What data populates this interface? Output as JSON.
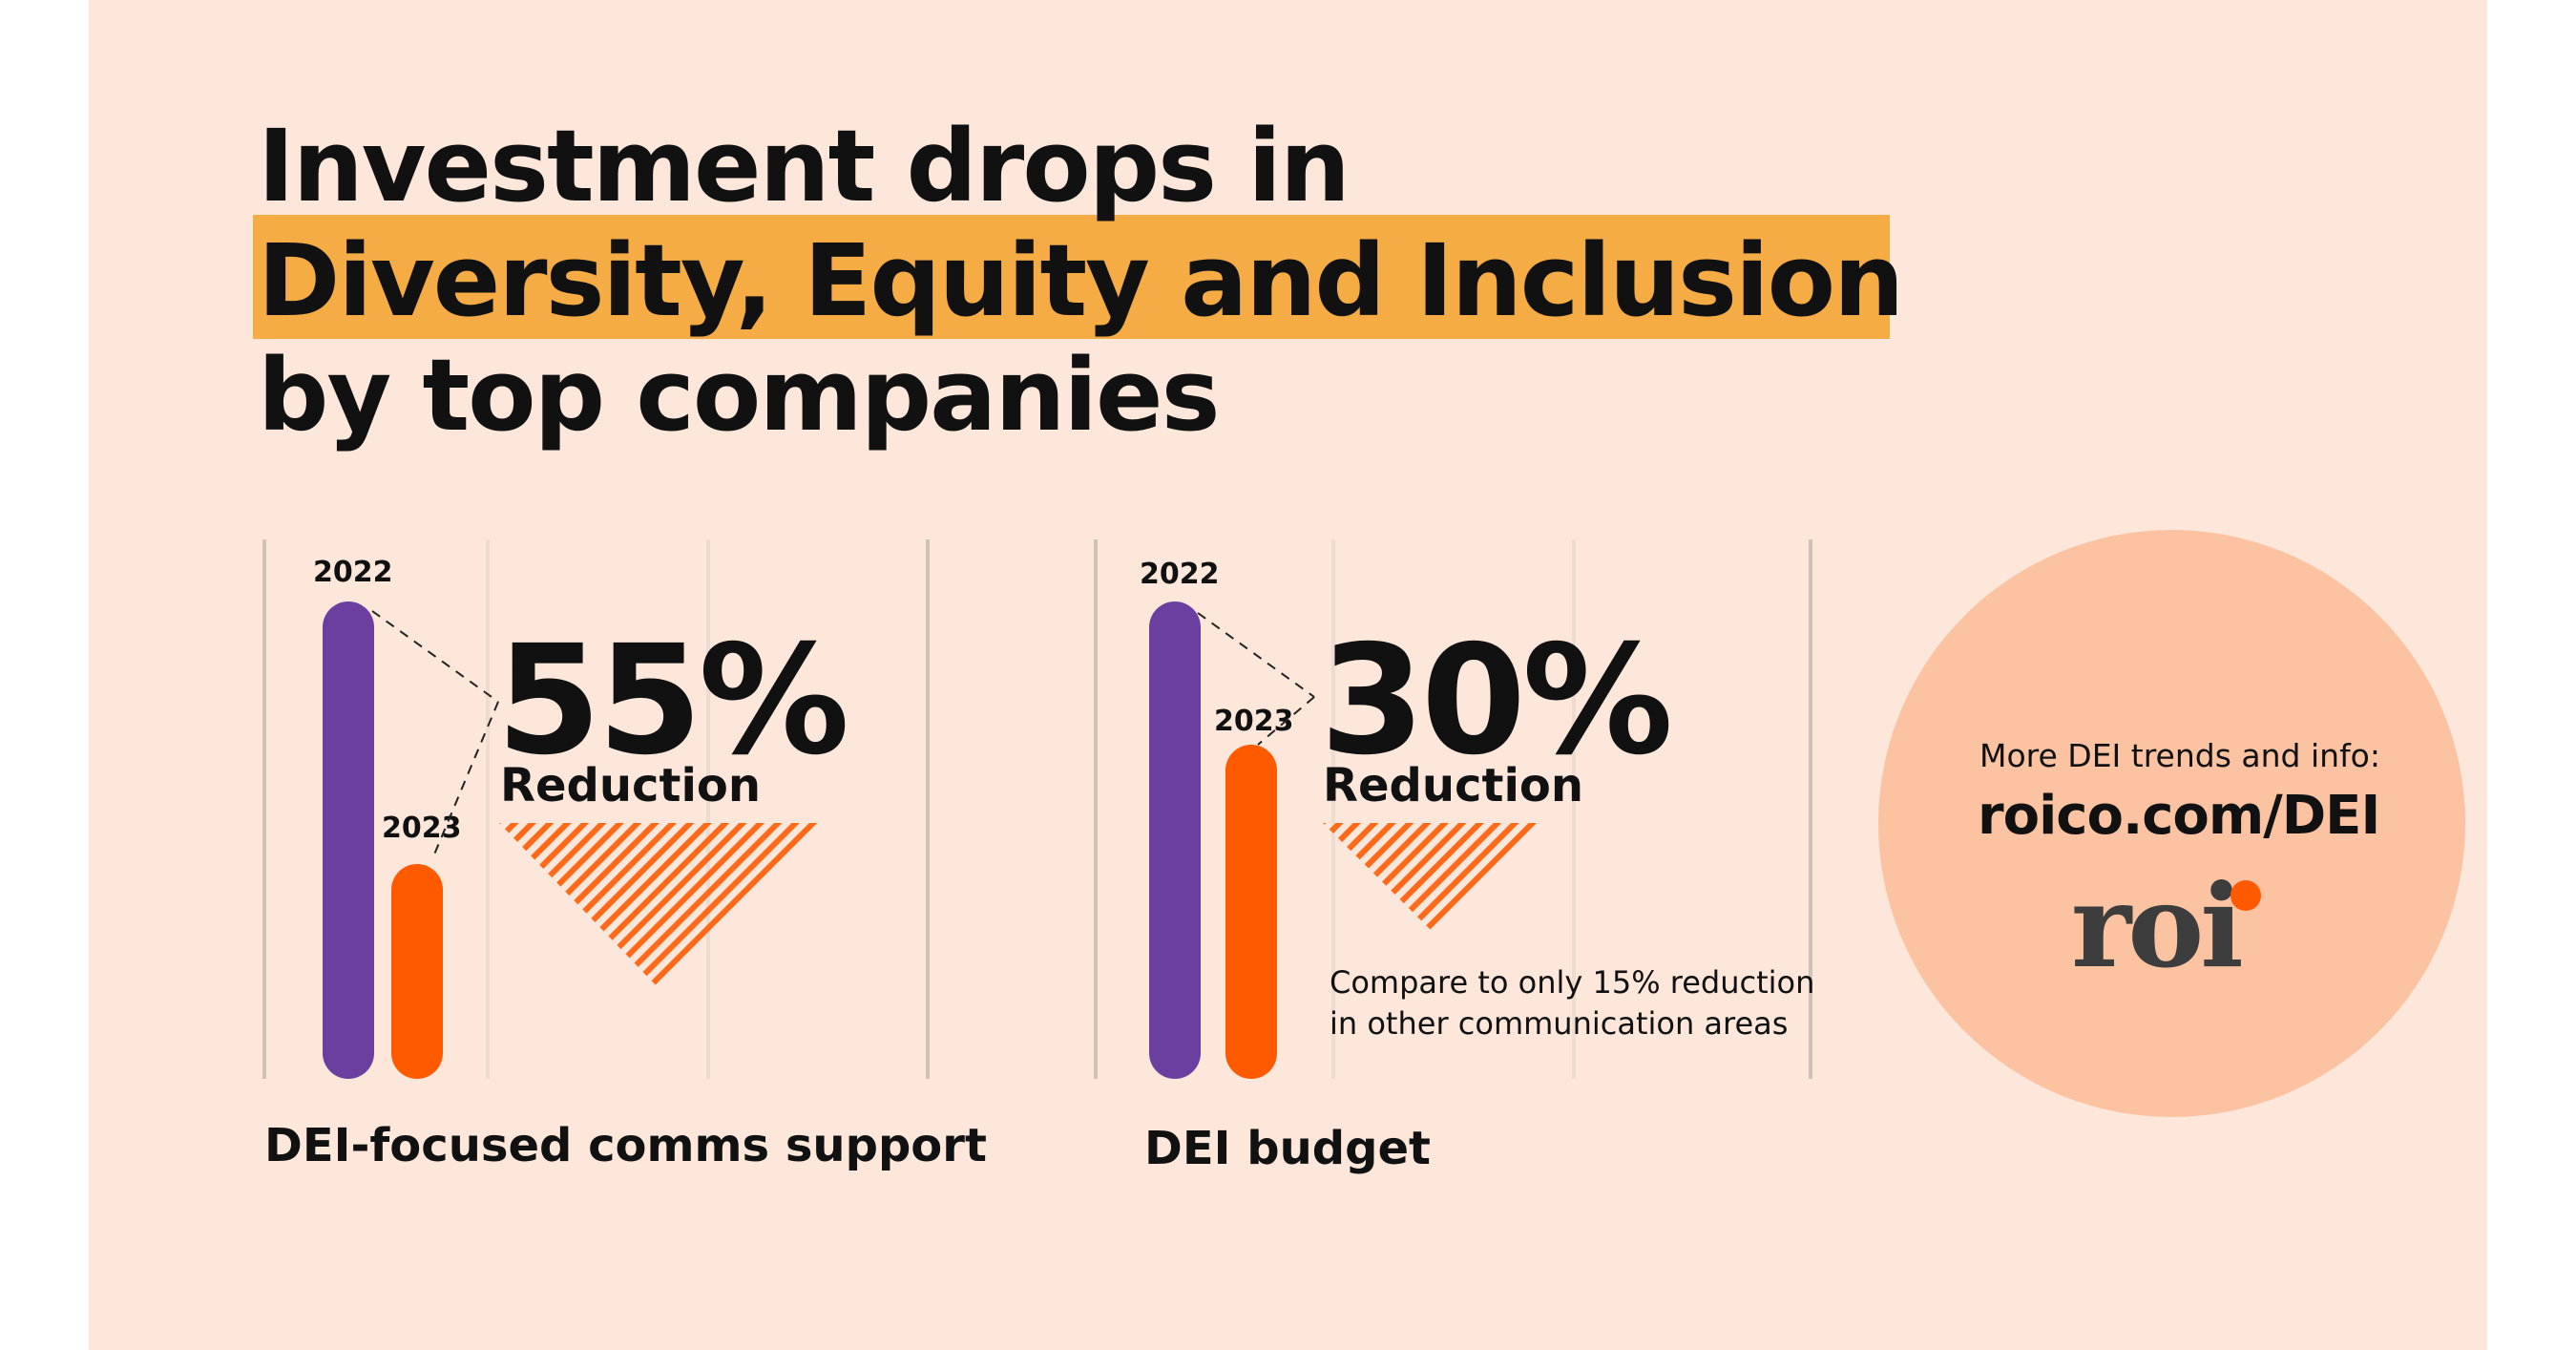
{
  "headline": {
    "line1": "Investment drops in",
    "line2": "Diversity, Equity and Inclusion",
    "line3": "by top companies",
    "highlight_color": "#f5ac45"
  },
  "colors": {
    "background": "#fde7db",
    "bar_2022": "#6b3fa0",
    "bar_2023": "#ff5a00",
    "hatch": "#ff6a1a",
    "circle": "#fbc3a2"
  },
  "chart_data": [
    {
      "type": "bar",
      "categories": [
        "2022",
        "2023"
      ],
      "values": [
        100,
        45
      ],
      "value_scale": "relative (2022 = 100)",
      "reduction_label": "55%",
      "reduction_word": "Reduction",
      "caption": "DEI-focused comms support"
    },
    {
      "type": "bar",
      "categories": [
        "2022",
        "2023"
      ],
      "values": [
        100,
        70
      ],
      "value_scale": "relative (2022 = 100)",
      "reduction_label": "30%",
      "reduction_word": "Reduction",
      "caption": "DEI budget",
      "note_line1": "Compare to only 15% reduction",
      "note_line2": "in other communication areas"
    }
  ],
  "promo": {
    "more_text": "More DEI trends and info:",
    "url": "roico.com/DEI",
    "logo_text": "roi"
  }
}
